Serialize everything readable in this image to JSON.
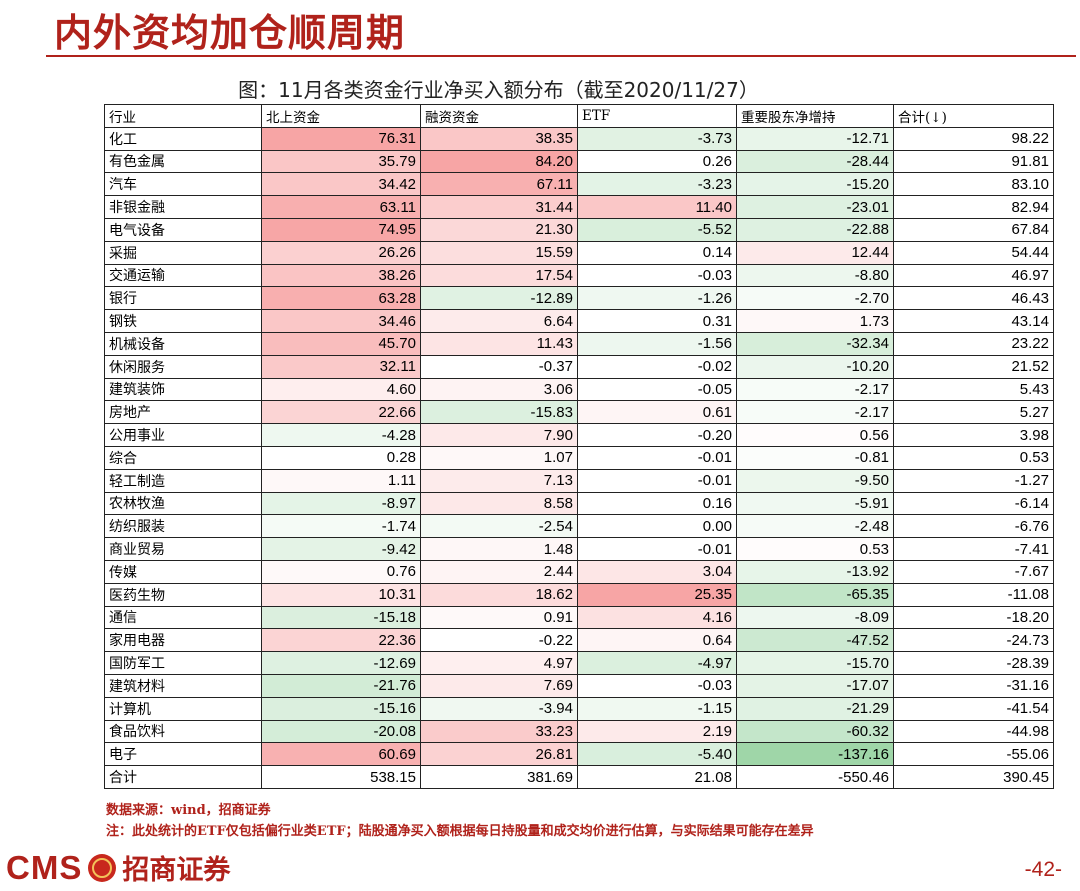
{
  "slide": {
    "title": "内外资均加仓顺周期",
    "figure_title": "图：11月各类资金行业净买入额分布（截至2020/11/27）"
  },
  "table": {
    "headers": [
      "行业",
      "北上资金",
      "融资资金",
      "ETF",
      "重要股东净增持",
      "合计(↓)"
    ],
    "rows": [
      {
        "name": "化工",
        "values": [
          "76.31",
          "38.35",
          "-3.73",
          "-12.71",
          "98.22"
        ]
      },
      {
        "name": "有色金属",
        "values": [
          "35.79",
          "84.20",
          "0.26",
          "-28.44",
          "91.81"
        ]
      },
      {
        "name": "汽车",
        "values": [
          "34.42",
          "67.11",
          "-3.23",
          "-15.20",
          "83.10"
        ]
      },
      {
        "name": "非银金融",
        "values": [
          "63.11",
          "31.44",
          "11.40",
          "-23.01",
          "82.94"
        ]
      },
      {
        "name": "电气设备",
        "values": [
          "74.95",
          "21.30",
          "-5.52",
          "-22.88",
          "67.84"
        ]
      },
      {
        "name": "采掘",
        "values": [
          "26.26",
          "15.59",
          "0.14",
          "12.44",
          "54.44"
        ]
      },
      {
        "name": "交通运输",
        "values": [
          "38.26",
          "17.54",
          "-0.03",
          "-8.80",
          "46.97"
        ]
      },
      {
        "name": "银行",
        "values": [
          "63.28",
          "-12.89",
          "-1.26",
          "-2.70",
          "46.43"
        ]
      },
      {
        "name": "钢铁",
        "values": [
          "34.46",
          "6.64",
          "0.31",
          "1.73",
          "43.14"
        ]
      },
      {
        "name": "机械设备",
        "values": [
          "45.70",
          "11.43",
          "-1.56",
          "-32.34",
          "23.22"
        ]
      },
      {
        "name": "休闲服务",
        "values": [
          "32.11",
          "-0.37",
          "-0.02",
          "-10.20",
          "21.52"
        ]
      },
      {
        "name": "建筑装饰",
        "values": [
          "4.60",
          "3.06",
          "-0.05",
          "-2.17",
          "5.43"
        ]
      },
      {
        "name": "房地产",
        "values": [
          "22.66",
          "-15.83",
          "0.61",
          "-2.17",
          "5.27"
        ]
      },
      {
        "name": "公用事业",
        "values": [
          "-4.28",
          "7.90",
          "-0.20",
          "0.56",
          "3.98"
        ]
      },
      {
        "name": "综合",
        "values": [
          "0.28",
          "1.07",
          "-0.01",
          "-0.81",
          "0.53"
        ]
      },
      {
        "name": "轻工制造",
        "values": [
          "1.11",
          "7.13",
          "-0.01",
          "-9.50",
          "-1.27"
        ]
      },
      {
        "name": "农林牧渔",
        "values": [
          "-8.97",
          "8.58",
          "0.16",
          "-5.91",
          "-6.14"
        ]
      },
      {
        "name": "纺织服装",
        "values": [
          "-1.74",
          "-2.54",
          "0.00",
          "-2.48",
          "-6.76"
        ]
      },
      {
        "name": "商业贸易",
        "values": [
          "-9.42",
          "1.48",
          "-0.01",
          "0.53",
          "-7.41"
        ]
      },
      {
        "name": "传媒",
        "values": [
          "0.76",
          "2.44",
          "3.04",
          "-13.92",
          "-7.67"
        ]
      },
      {
        "name": "医药生物",
        "values": [
          "10.31",
          "18.62",
          "25.35",
          "-65.35",
          "-11.08"
        ]
      },
      {
        "name": "通信",
        "values": [
          "-15.18",
          "0.91",
          "4.16",
          "-8.09",
          "-18.20"
        ]
      },
      {
        "name": "家用电器",
        "values": [
          "22.36",
          "-0.22",
          "0.64",
          "-47.52",
          "-24.73"
        ]
      },
      {
        "name": "国防军工",
        "values": [
          "-12.69",
          "4.97",
          "-4.97",
          "-15.70",
          "-28.39"
        ]
      },
      {
        "name": "建筑材料",
        "values": [
          "-21.76",
          "7.69",
          "-0.03",
          "-17.07",
          "-31.16"
        ]
      },
      {
        "name": "计算机",
        "values": [
          "-15.16",
          "-3.94",
          "-1.15",
          "-21.29",
          "-41.54"
        ]
      },
      {
        "name": "食品饮料",
        "values": [
          "-20.08",
          "33.23",
          "2.19",
          "-60.32",
          "-44.98"
        ]
      },
      {
        "name": "电子",
        "values": [
          "60.69",
          "26.81",
          "-5.40",
          "-137.16",
          "-55.06"
        ]
      }
    ],
    "total": {
      "name": "合计",
      "values": [
        "538.15",
        "381.69",
        "21.08",
        "-550.46",
        "390.45"
      ]
    }
  },
  "colors": {
    "accent": "#b0221b",
    "positive_max": "#f7a5a5",
    "negative_max": "#9fd6a8"
  },
  "notes": {
    "source": "数据来源：wind，招商证券",
    "remark": "注：此处统计的ETF仅包括偏行业类ETF；陆股通净买入额根据每日持股量和成交均价进行估算，与实际结果可能存在差异"
  },
  "footer": {
    "brand_en": "CMS",
    "brand_cn": "招商证券",
    "page_number": "-42-"
  }
}
